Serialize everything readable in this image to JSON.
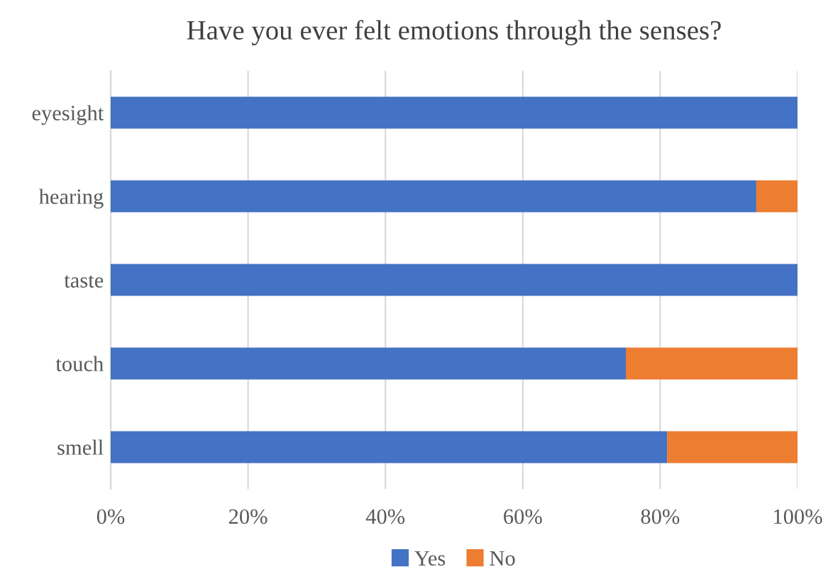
{
  "chart_data": {
    "type": "bar",
    "orientation": "horizontal",
    "stacked": true,
    "title": "Have you ever felt emotions through the senses?",
    "categories": [
      "eyesight",
      "hearing",
      "taste",
      "touch",
      "smell"
    ],
    "series": [
      {
        "name": "Yes",
        "color": "#4472c4",
        "values": [
          100,
          94,
          100,
          75,
          81
        ]
      },
      {
        "name": "No",
        "color": "#ed7d31",
        "values": [
          0,
          6,
          0,
          25,
          19
        ]
      }
    ],
    "xlim": [
      0,
      100
    ],
    "xticks": [
      {
        "value": 0,
        "label": "0%"
      },
      {
        "value": 20,
        "label": "20%"
      },
      {
        "value": 40,
        "label": "40%"
      },
      {
        "value": 60,
        "label": "60%"
      },
      {
        "value": 80,
        "label": "80%"
      },
      {
        "value": 100,
        "label": "100%"
      }
    ],
    "grid": "x",
    "legend": "bottom"
  }
}
